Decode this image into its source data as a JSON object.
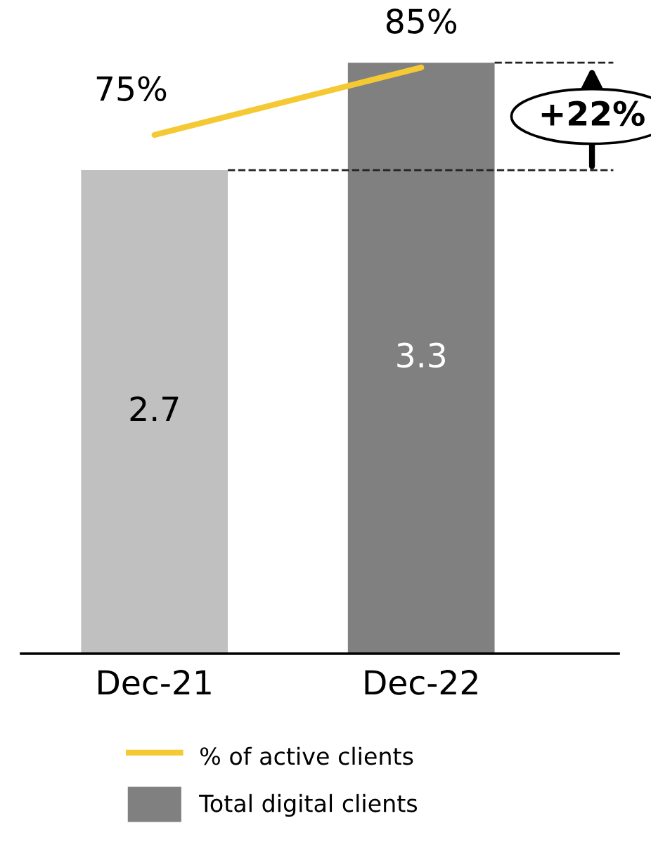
{
  "chart_data": {
    "type": "bar",
    "categories": [
      "Dec-21",
      "Dec-22"
    ],
    "series": [
      {
        "name": "Total digital clients",
        "color": "#808080",
        "colors": [
          "#c0c0c0",
          "#808080"
        ],
        "values": [
          2.7,
          3.3
        ],
        "value_labels": [
          "2.7",
          "3.3"
        ]
      },
      {
        "type": "line",
        "name": "% of active clients",
        "color": "#f5c933",
        "axis": "y2",
        "values": [
          75,
          85
        ],
        "value_labels": [
          "75%",
          "85%"
        ]
      }
    ],
    "ref_lines": [
      {
        "axis": "y",
        "value": 2.7,
        "color": "#222222",
        "line_style": "dashed"
      },
      {
        "axis": "y",
        "value": 3.3,
        "color": "#222222",
        "line_style": "dashed"
      }
    ],
    "tick_labels": "x",
    "annotations": [
      "+22%"
    ],
    "grid": false,
    "legend": "bottom"
  }
}
